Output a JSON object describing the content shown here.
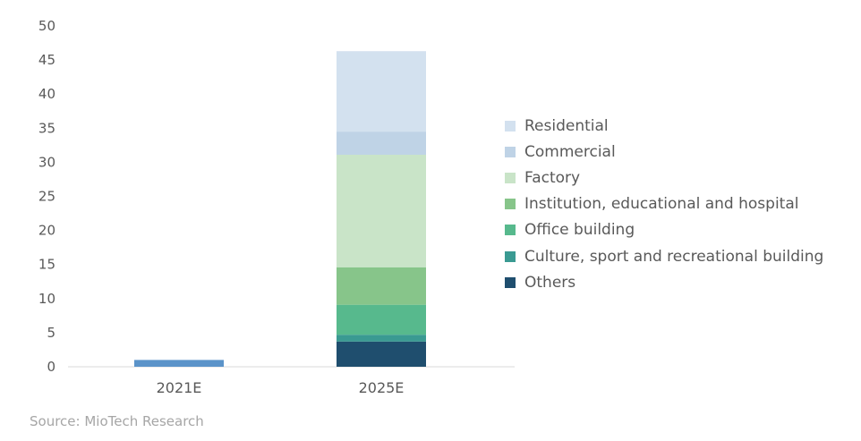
{
  "chart_data": {
    "type": "bar",
    "stacked": true,
    "categories": [
      "2021E",
      "2025E"
    ],
    "series": [
      {
        "name": "Others",
        "color": "#1f4e6e",
        "values": [
          0,
          3.7
        ]
      },
      {
        "name": "Culture, sport and recreational building",
        "color": "#3a9a92",
        "values": [
          0,
          1.0
        ]
      },
      {
        "name": "Office building",
        "color": "#57b98d",
        "values": [
          0,
          4.4
        ]
      },
      {
        "name": "Institution, educational and hospital",
        "color": "#87c58a",
        "values": [
          0,
          5.5
        ]
      },
      {
        "name": "Factory",
        "color": "#c9e4c8",
        "values": [
          0,
          16.5
        ]
      },
      {
        "name": "Commercial",
        "color": "#bfd3e6",
        "values": [
          0,
          3.4
        ]
      },
      {
        "name": "Residential",
        "color": "#d3e1ef",
        "values": [
          0,
          11.8
        ]
      }
    ],
    "total_series": {
      "name": "",
      "color": "#5b93c9",
      "values": [
        1.0,
        null
      ]
    },
    "ylim": [
      0,
      50
    ],
    "yticks": [
      0,
      5,
      10,
      15,
      20,
      25,
      30,
      35,
      40,
      45,
      50
    ],
    "legend_order": [
      "Residential",
      "Commercial",
      "Factory",
      "Institution, educational and hospital",
      "Office building",
      "Culture, sport and recreational building",
      "Others"
    ],
    "legend_position": "right",
    "grid": false,
    "xlabel": "",
    "ylabel": "",
    "title": ""
  },
  "source": "Source: MioTech Research"
}
